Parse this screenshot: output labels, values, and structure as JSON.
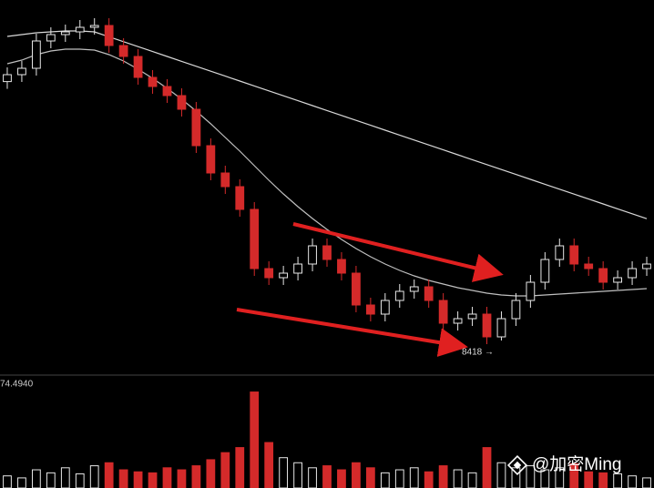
{
  "chart_data": {
    "type": "candlestick",
    "annotation": "8418 →",
    "volume_label": "74.4940",
    "watermark": "@加密Ming",
    "up_color": "#e6e6e6",
    "down_color": "#d42a2a",
    "ylim": [
      8258,
      10308
    ],
    "volume_ylim": [
      0,
      100
    ],
    "open": [
      9860,
      9898,
      9933,
      10083,
      10118,
      10133,
      10158,
      10168,
      10058,
      9998,
      9883,
      9833,
      9783,
      9708,
      9508,
      9358,
      9283,
      9158,
      8833,
      8783,
      8808,
      8858,
      8958,
      8883,
      8808,
      8633,
      8583,
      8658,
      8708,
      8733,
      8658,
      8533,
      8558,
      8583,
      8458,
      8558,
      8658,
      8758,
      8883,
      8958,
      8858,
      8833,
      8758,
      8783,
      8833
    ],
    "high": [
      9938,
      9973,
      10123,
      10158,
      10173,
      10198,
      10208,
      10208,
      10098,
      10038,
      9923,
      9873,
      9823,
      9748,
      9548,
      9398,
      9323,
      9198,
      8873,
      8848,
      8898,
      8998,
      8998,
      8923,
      8848,
      8673,
      8698,
      8748,
      8773,
      8773,
      8698,
      8598,
      8623,
      8623,
      8598,
      8698,
      8798,
      8923,
      8998,
      8998,
      8898,
      8873,
      8823,
      8873,
      8898
    ],
    "low": [
      9820,
      9858,
      9893,
      10043,
      10078,
      10093,
      10118,
      10018,
      9958,
      9843,
      9793,
      9743,
      9668,
      9468,
      9318,
      9243,
      9118,
      8793,
      8743,
      8743,
      8768,
      8818,
      8843,
      8768,
      8593,
      8543,
      8543,
      8618,
      8668,
      8618,
      8493,
      8493,
      8518,
      8418,
      8438,
      8518,
      8618,
      8718,
      8843,
      8818,
      8793,
      8718,
      8718,
      8743,
      8793
    ],
    "close": [
      9898,
      9933,
      10083,
      10118,
      10133,
      10158,
      10168,
      10058,
      9998,
      9883,
      9833,
      9783,
      9708,
      9508,
      9358,
      9283,
      9158,
      8833,
      8783,
      8808,
      8858,
      8958,
      8883,
      8808,
      8633,
      8583,
      8658,
      8708,
      8733,
      8658,
      8533,
      8558,
      8583,
      8458,
      8558,
      8658,
      8758,
      8883,
      8958,
      8858,
      8833,
      8758,
      8783,
      8833,
      8858
    ],
    "volume": [
      12,
      10,
      18,
      15,
      20,
      14,
      22,
      25,
      18,
      16,
      15,
      20,
      18,
      22,
      28,
      35,
      40,
      95,
      45,
      30,
      25,
      20,
      22,
      18,
      25,
      20,
      15,
      18,
      20,
      16,
      22,
      18,
      15,
      40,
      25,
      20,
      22,
      18,
      20,
      24,
      16,
      15,
      14,
      12,
      10
    ],
    "lines": [
      {
        "color": "#d8d8d8",
        "values": [
          10108,
          10118,
          10128,
          10133,
          10138,
          10138,
          10133,
          10106,
          10079,
          10052,
          10025,
          9998,
          9971,
          9944,
          9917,
          9890,
          9863,
          9836,
          9809,
          9782,
          9755,
          9728,
          9701,
          9674,
          9647,
          9620,
          9593,
          9566,
          9539,
          9512,
          9485,
          9458,
          9431,
          9404,
          9377,
          9350,
          9323,
          9296,
          9269,
          9242,
          9215,
          9188,
          9161,
          9134,
          9107
        ]
      },
      {
        "color": "#bfbfbf",
        "values": [
          9958,
          9978,
          10008,
          10028,
          10038,
          10038,
          10033,
          10008,
          9973,
          9928,
          9878,
          9823,
          9763,
          9698,
          9628,
          9553,
          9478,
          9398,
          9318,
          9243,
          9173,
          9108,
          9048,
          8993,
          8943,
          8898,
          8858,
          8823,
          8793,
          8768,
          8748,
          8728,
          8713,
          8698,
          8688,
          8683,
          8683,
          8688,
          8693,
          8698,
          8703,
          8708,
          8713,
          8718,
          8723
        ]
      }
    ]
  }
}
